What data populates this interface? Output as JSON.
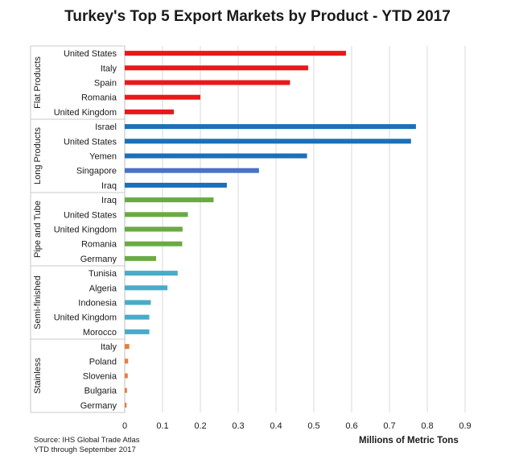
{
  "chart_data": {
    "type": "bar",
    "orientation": "horizontal",
    "title": "Turkey's Top 5 Export Markets by Product - YTD 2017",
    "xlabel": "Millions of Metric Tons",
    "xlim": [
      0,
      0.9
    ],
    "xticks": [
      "0",
      "0.1",
      "0.2",
      "0.3",
      "0.4",
      "0.5",
      "0.6",
      "0.7",
      "0.8",
      "0.9"
    ],
    "xtick_values": [
      0,
      0.1,
      0.2,
      0.3,
      0.4,
      0.5,
      0.6,
      0.7,
      0.8,
      0.9
    ],
    "grid": true,
    "source": [
      "Source: IHS Global Trade Atlas",
      "YTD through September 2017"
    ],
    "groups": [
      {
        "name": "Flat Products",
        "color": "#e8191a",
        "categories": [
          "United States",
          "Italy",
          "Spain",
          "Romania",
          "United Kingdom"
        ],
        "values": [
          0.585,
          0.485,
          0.437,
          0.2,
          0.13
        ]
      },
      {
        "name": "Long Products",
        "color": "#1d6fb8",
        "categories": [
          "Israel",
          "United States",
          "Yemen",
          "Singapore",
          "Iraq"
        ],
        "values": [
          0.77,
          0.757,
          0.482,
          0.355,
          0.27
        ],
        "bar_colors": [
          "#1d6fb8",
          "#1d6fb8",
          "#1d6fb8",
          "#4a72c4",
          "#1d6fb8"
        ]
      },
      {
        "name": "Pipe and Tube",
        "color": "#6aaa44",
        "categories": [
          "Iraq",
          "United States",
          "United Kingdom",
          "Romania",
          "Germany"
        ],
        "values": [
          0.235,
          0.167,
          0.153,
          0.152,
          0.083
        ]
      },
      {
        "name": "Semi-finished",
        "color": "#4aabc8",
        "categories": [
          "Tunisia",
          "Algeria",
          "Indonesia",
          "United Kingdom",
          "Morocco"
        ],
        "values": [
          0.14,
          0.113,
          0.069,
          0.065,
          0.065
        ]
      },
      {
        "name": "Stainless",
        "color": "#e87c3e",
        "categories": [
          "Italy",
          "Poland",
          "Slovenia",
          "Bulgaria",
          "Germany"
        ],
        "values": [
          0.012,
          0.009,
          0.008,
          0.006,
          0.005
        ]
      }
    ]
  }
}
